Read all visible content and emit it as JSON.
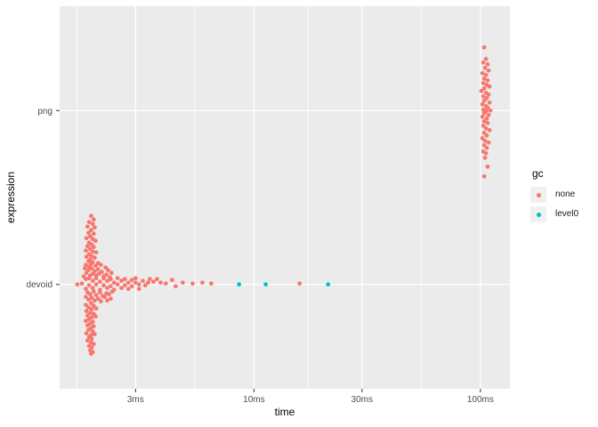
{
  "figure": {
    "background_color": "#ffffff",
    "panel_background_color": "#EBEBEB",
    "grid_color": "#FFFFFF",
    "tick_mark_color": "#333333",
    "tick_label_color": "#4d4d4d"
  },
  "axes": {
    "x_title": "time",
    "y_title": "expression"
  },
  "legend": {
    "title": "gc",
    "position": "right",
    "key_fill": "#F0F0F0",
    "items": [
      {
        "label": "none",
        "color": "#F8766D"
      },
      {
        "label": "level0",
        "color": "#00BFC4"
      }
    ]
  },
  "chart_data": {
    "type": "scatter",
    "title": "",
    "xlabel": "time",
    "ylabel": "expression",
    "x_scale": "log10",
    "x_unit": "ms",
    "x_domain_ms": [
      1.386,
      135
    ],
    "x_major_breaks": [
      {
        "value": 3,
        "label": "3ms"
      },
      {
        "value": 10,
        "label": "10ms"
      },
      {
        "value": 30,
        "label": "30ms"
      },
      {
        "value": 100,
        "label": "100ms"
      }
    ],
    "x_minor_breaks": [
      1.65,
      5.48,
      17.3,
      54.8
    ],
    "y_categories": [
      {
        "name": "devoid",
        "position": 1
      },
      {
        "name": "png",
        "position": 2
      }
    ],
    "y_expand": [
      0.4,
      2.6
    ],
    "grid": true,
    "legend_position": "right",
    "point_radius_px": 2.35,
    "jitter_unit": "px-offset-from-category-row",
    "series": [
      {
        "name": "none",
        "color": "#F8766D",
        "groups": [
          {
            "expression": "devoid",
            "points": [
              [
                1.91,
                -77
              ],
              [
                1.96,
                -73
              ],
              [
                1.87,
                -70
              ],
              [
                1.94,
                -68
              ],
              [
                1.84,
                -65
              ],
              [
                1.98,
                -64
              ],
              [
                1.91,
                -61
              ],
              [
                1.86,
                -58
              ],
              [
                1.96,
                -57
              ],
              [
                1.89,
                -54
              ],
              [
                1.82,
                -52
              ],
              [
                1.94,
                -51
              ],
              [
                2.0,
                -49
              ],
              [
                1.87,
                -47
              ],
              [
                1.92,
                -45
              ],
              [
                1.84,
                -43
              ],
              [
                1.96,
                -42
              ],
              [
                1.89,
                -40
              ],
              [
                1.81,
                -38
              ],
              [
                1.94,
                -37
              ],
              [
                2.01,
                -36
              ],
              [
                1.87,
                -34
              ],
              [
                1.92,
                -32
              ],
              [
                1.82,
                -31
              ],
              [
                1.98,
                -30
              ],
              [
                1.89,
                -28
              ],
              [
                1.86,
                -26
              ],
              [
                1.94,
                -25
              ],
              [
                2.05,
                -24
              ],
              [
                1.91,
                -23
              ],
              [
                1.81,
                -22
              ],
              [
                2.0,
                -21
              ],
              [
                1.87,
                -20
              ],
              [
                2.11,
                -22
              ],
              [
                1.79,
                -18
              ],
              [
                1.92,
                -18
              ],
              [
                2.05,
                -17
              ],
              [
                2.21,
                -19
              ],
              [
                1.86,
                -16
              ],
              [
                1.98,
                -15
              ],
              [
                2.13,
                -14
              ],
              [
                2.27,
                -16
              ],
              [
                1.82,
                -13
              ],
              [
                1.94,
                -12
              ],
              [
                2.07,
                -12
              ],
              [
                2.23,
                -11
              ],
              [
                2.35,
                -13
              ],
              [
                1.89,
                -10
              ],
              [
                2.01,
                -10
              ],
              [
                2.17,
                -9
              ],
              [
                2.31,
                -8
              ],
              [
                1.77,
                -9
              ],
              [
                1.66,
                0
              ],
              [
                1.74,
                -1
              ],
              [
                1.81,
                -6
              ],
              [
                1.81,
                5
              ],
              [
                1.87,
                -7
              ],
              [
                1.87,
                1
              ],
              [
                1.94,
                -4
              ],
              [
                1.94,
                4
              ],
              [
                2.01,
                -7
              ],
              [
                2.01,
                0
              ],
              [
                2.09,
                -3
              ],
              [
                2.09,
                6
              ],
              [
                2.17,
                -7
              ],
              [
                2.17,
                1
              ],
              [
                2.25,
                -4
              ],
              [
                2.25,
                4
              ],
              [
                2.33,
                -6
              ],
              [
                2.33,
                2
              ],
              [
                2.41,
                -2
              ],
              [
                2.41,
                6
              ],
              [
                2.5,
                -7
              ],
              [
                2.5,
                0
              ],
              [
                2.6,
                -4
              ],
              [
                2.6,
                4
              ],
              [
                2.69,
                -6
              ],
              [
                2.69,
                1
              ],
              [
                2.79,
                -2
              ],
              [
                2.79,
                5
              ],
              [
                2.89,
                -5
              ],
              [
                2.89,
                2
              ],
              [
                3.0,
                -7
              ],
              [
                3.0,
                -2
              ],
              [
                3.11,
                0
              ],
              [
                3.11,
                5
              ],
              [
                3.23,
                -4
              ],
              [
                3.31,
                1
              ],
              [
                3.41,
                -2
              ],
              [
                3.47,
                -6
              ],
              [
                3.6,
                -3
              ],
              [
                3.73,
                -6
              ],
              [
                3.87,
                -2
              ],
              [
                4.08,
                -1
              ],
              [
                4.35,
                -5
              ],
              [
                4.51,
                2
              ],
              [
                4.85,
                -2
              ],
              [
                5.36,
                -1
              ],
              [
                5.92,
                -2
              ],
              [
                6.48,
                -1
              ],
              [
                15.9,
                -1
              ],
              [
                1.84,
                9
              ],
              [
                1.96,
                8
              ],
              [
                2.09,
                9
              ],
              [
                2.23,
                10
              ],
              [
                2.37,
                8
              ],
              [
                1.89,
                11
              ],
              [
                2.01,
                12
              ],
              [
                2.15,
                13
              ],
              [
                2.29,
                11
              ],
              [
                1.81,
                14
              ],
              [
                1.92,
                15
              ],
              [
                2.05,
                16
              ],
              [
                2.19,
                14
              ],
              [
                2.33,
                16
              ],
              [
                1.86,
                17
              ],
              [
                1.98,
                18
              ],
              [
                2.11,
                19
              ],
              [
                2.25,
                18
              ],
              [
                1.91,
                21
              ],
              [
                1.81,
                23
              ],
              [
                1.96,
                24
              ],
              [
                1.86,
                26
              ],
              [
                1.92,
                28
              ],
              [
                2.01,
                27
              ],
              [
                1.82,
                30
              ],
              [
                1.89,
                32
              ],
              [
                1.96,
                33
              ],
              [
                1.84,
                35
              ],
              [
                1.92,
                37
              ],
              [
                2.0,
                36
              ],
              [
                1.87,
                39
              ],
              [
                1.81,
                41
              ],
              [
                1.94,
                42
              ],
              [
                1.89,
                44
              ],
              [
                1.84,
                46
              ],
              [
                1.96,
                47
              ],
              [
                1.91,
                49
              ],
              [
                1.86,
                51
              ],
              [
                1.94,
                53
              ],
              [
                1.82,
                55
              ],
              [
                1.91,
                57
              ],
              [
                1.98,
                56
              ],
              [
                1.87,
                59
              ],
              [
                1.92,
                61
              ],
              [
                1.84,
                63
              ],
              [
                1.91,
                65
              ],
              [
                1.96,
                67
              ],
              [
                1.87,
                69
              ],
              [
                1.92,
                71
              ],
              [
                1.89,
                74
              ],
              [
                1.94,
                76
              ],
              [
                1.91,
                78
              ]
            ]
          },
          {
            "expression": "png",
            "points": [
              [
                103.9,
                -71
              ],
              [
                105.8,
                -58
              ],
              [
                103,
                -54
              ],
              [
                107.7,
                -52
              ],
              [
                104.8,
                -48
              ],
              [
                108.7,
                -45
              ],
              [
                102,
                -42
              ],
              [
                105.8,
                -40
              ],
              [
                103.9,
                -36
              ],
              [
                107.7,
                -34
              ],
              [
                103,
                -31
              ],
              [
                106.7,
                -29
              ],
              [
                109.7,
                -27
              ],
              [
                103.9,
                -25
              ],
              [
                101.1,
                -22
              ],
              [
                105.8,
                -20
              ],
              [
                108.7,
                -18
              ],
              [
                103,
                -16
              ],
              [
                106.7,
                -14
              ],
              [
                103.9,
                -11
              ],
              [
                109.7,
                -9
              ],
              [
                102,
                -7
              ],
              [
                105.8,
                -5
              ],
              [
                107.7,
                -3
              ],
              [
                103,
                -1
              ],
              [
                110.7,
                0
              ],
              [
                105.8,
                1
              ],
              [
                103.9,
                3
              ],
              [
                108.7,
                5
              ],
              [
                102,
                7
              ],
              [
                106.7,
                9
              ],
              [
                103.9,
                12
              ],
              [
                107.7,
                14
              ],
              [
                103,
                17
              ],
              [
                105.8,
                20
              ],
              [
                109.7,
                22
              ],
              [
                103.9,
                25
              ],
              [
                106.7,
                28
              ],
              [
                102,
                31
              ],
              [
                104.8,
                34
              ],
              [
                108.7,
                36
              ],
              [
                103.9,
                39
              ],
              [
                106.7,
                42
              ],
              [
                103,
                46
              ],
              [
                105.8,
                48
              ],
              [
                104.8,
                53
              ],
              [
                107.7,
                63
              ],
              [
                103.9,
                74
              ]
            ]
          }
        ]
      },
      {
        "name": "level0",
        "color": "#00BFC4",
        "groups": [
          {
            "expression": "devoid",
            "points": [
              [
                8.59,
                0
              ],
              [
                11.27,
                0
              ],
              [
                21.26,
                0
              ]
            ]
          }
        ]
      }
    ]
  }
}
